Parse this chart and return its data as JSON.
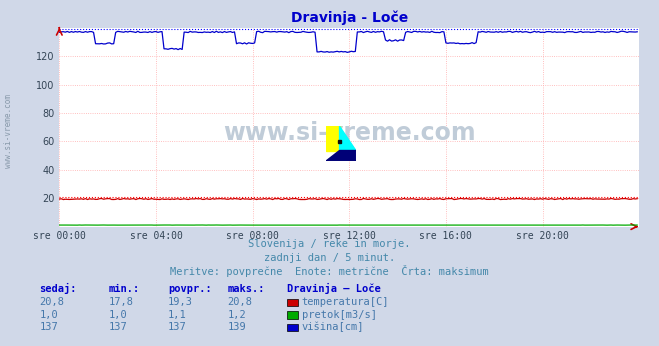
{
  "title": "Dravinja - Loče",
  "title_color": "#0000cc",
  "bg_color": "#d0d8e8",
  "plot_bg_color": "#ffffff",
  "grid_color": "#ffaaaa",
  "xlim": [
    0,
    288
  ],
  "ylim": [
    0,
    140
  ],
  "yticks": [
    20,
    40,
    60,
    80,
    100,
    120
  ],
  "xtick_labels": [
    "sre 00:00",
    "sre 04:00",
    "sre 08:00",
    "sre 12:00",
    "sre 16:00",
    "sre 20:00"
  ],
  "xtick_positions": [
    0,
    48,
    96,
    144,
    192,
    240
  ],
  "temp_base": 19.5,
  "temp_max_dotted": 20.8,
  "flow_base": 1.1,
  "height_base": 137.0,
  "height_max_dotted": 139.0,
  "temp_color": "#cc0000",
  "flow_color": "#00aa00",
  "height_color": "#0000cc",
  "dot_red": "#ff0000",
  "dot_blue": "#0000ff",
  "watermark_text": "www.si-vreme.com",
  "watermark_color": "#c0ccd8",
  "subtitle1": "Slovenija / reke in morje.",
  "subtitle2": "zadnji dan / 5 minut.",
  "subtitle3": "Meritve: povprečne  Enote: metrične  Črta: maksimum",
  "subtitle_color": "#4488aa",
  "table_headers": [
    "sedaj:",
    "min.:",
    "povpr.:",
    "maks.:"
  ],
  "table_title": "Dravinja – Loče",
  "table_data": [
    [
      "20,8",
      "17,8",
      "19,3",
      "20,8"
    ],
    [
      "1,0",
      "1,0",
      "1,1",
      "1,2"
    ],
    [
      "137",
      "137",
      "137",
      "139"
    ]
  ],
  "table_series": [
    "temperatura[C]",
    "pretok[m3/s]",
    "višina[cm]"
  ],
  "table_colors": [
    "#cc0000",
    "#00aa00",
    "#0000cc"
  ],
  "table_text_color": "#4477aa",
  "table_header_color": "#0000cc",
  "left_label": "www.si-vreme.com",
  "left_label_color": "#8899aa"
}
